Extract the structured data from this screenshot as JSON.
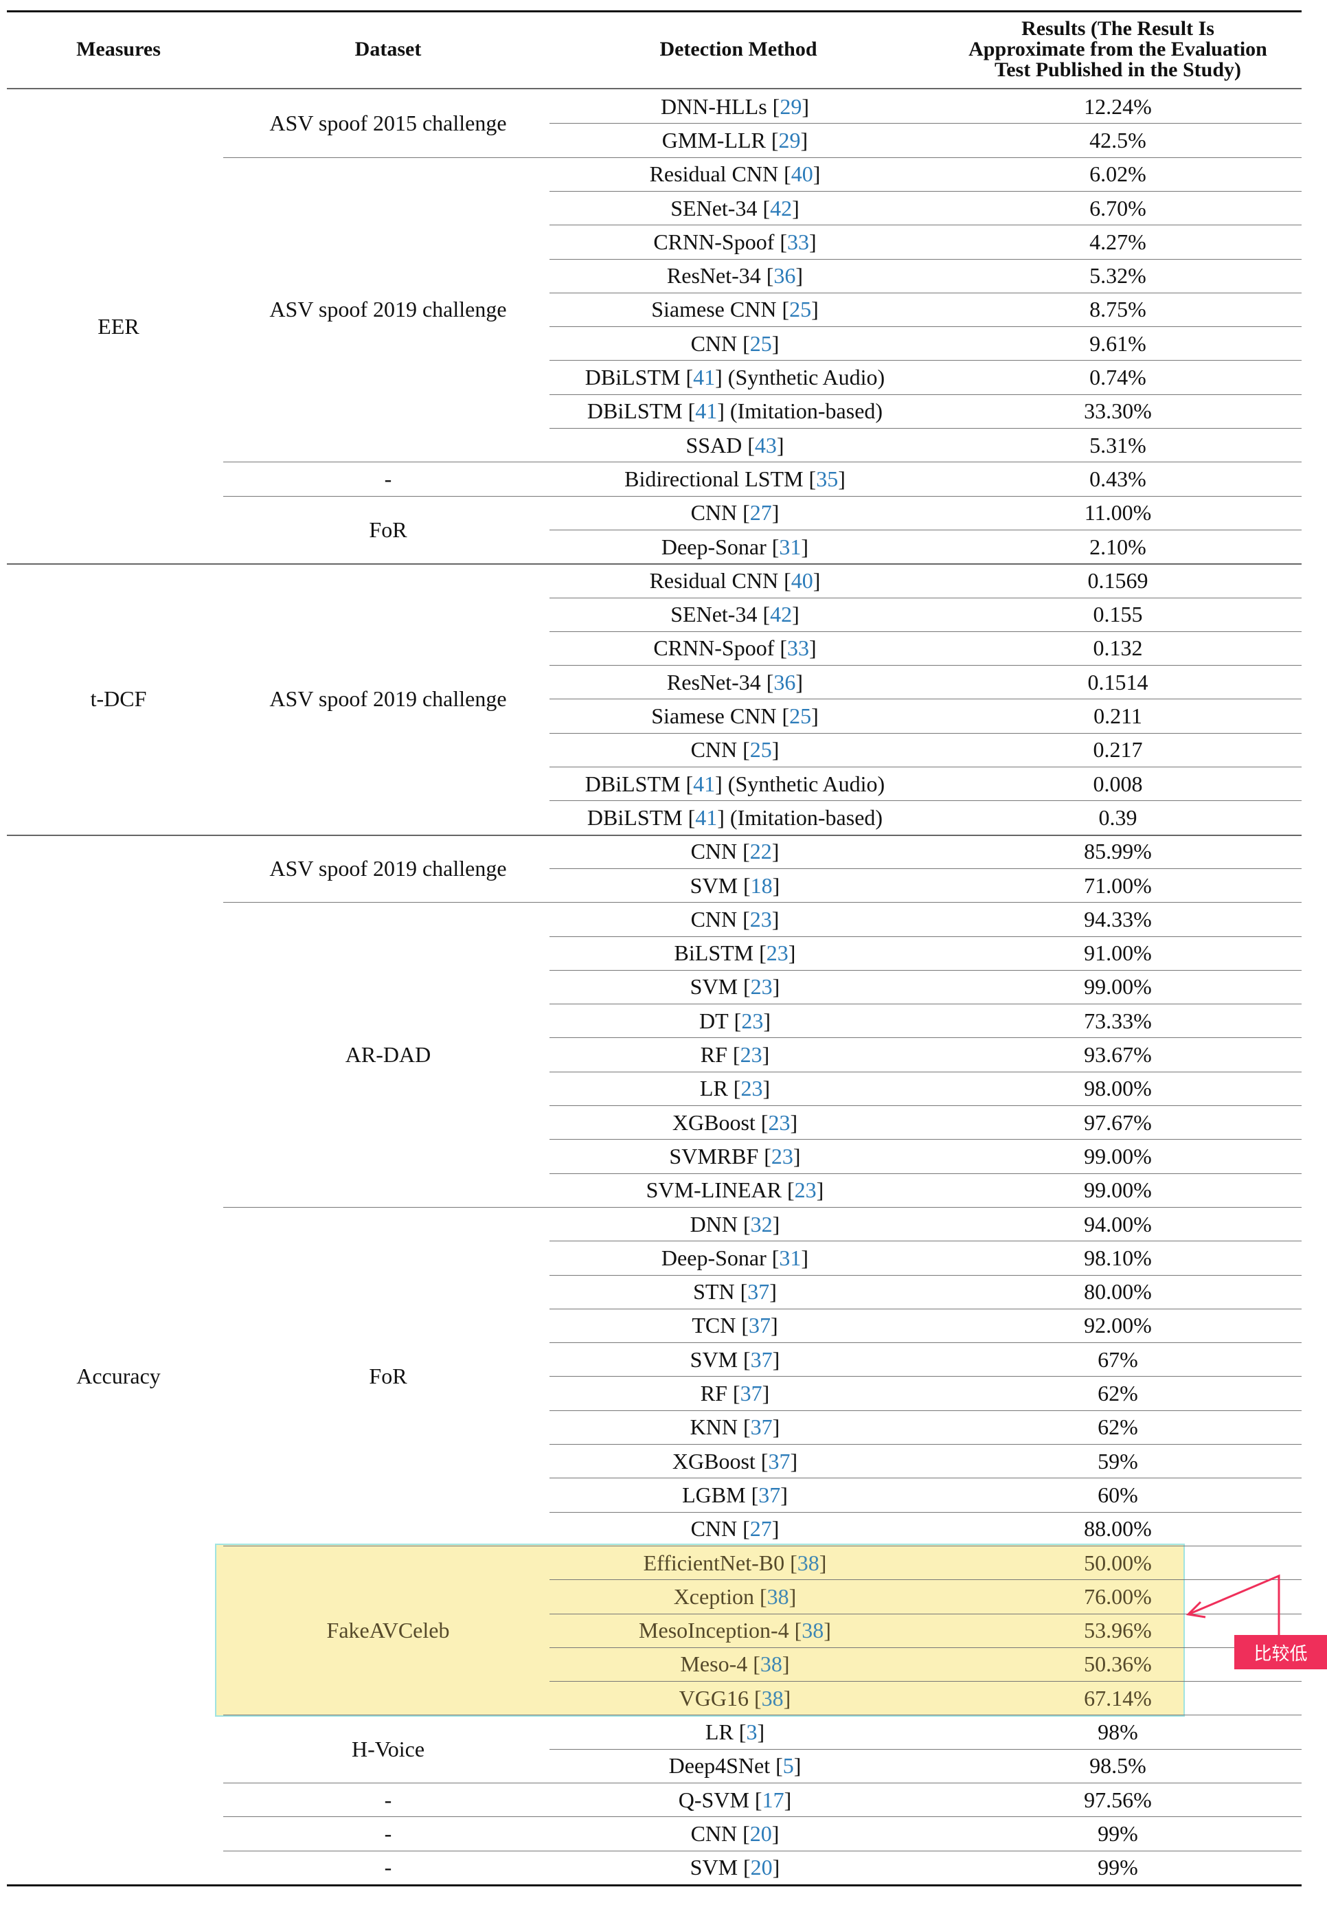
{
  "header": {
    "measures": "Measures",
    "dataset": "Dataset",
    "method": "Detection Method",
    "results": [
      "Results (The Result Is",
      "Approximate from the Evaluation",
      "Test Published in the Study)"
    ]
  },
  "colors": {
    "reference_link": "#2b7bb9",
    "highlight_fill": "#fbf1b8",
    "highlight_border": "#9fe3e1",
    "annotation": "#ef2f5a"
  },
  "measures": [
    {
      "label": "EER",
      "rows": [
        0,
        13
      ]
    },
    {
      "label": "t-DCF",
      "rows": [
        14,
        21
      ]
    },
    {
      "label": "Accuracy",
      "rows": [
        22,
        53
      ]
    }
  ],
  "datasets": [
    {
      "label": "ASV spoof 2015 challenge",
      "rows": [
        0,
        1
      ]
    },
    {
      "label": "ASV spoof 2019 challenge",
      "rows": [
        2,
        10
      ]
    },
    {
      "label": "-",
      "rows": [
        11,
        11
      ]
    },
    {
      "label": "FoR",
      "rows": [
        12,
        13
      ]
    },
    {
      "label": "ASV spoof 2019 challenge",
      "rows": [
        14,
        21
      ]
    },
    {
      "label": "ASV spoof 2019 challenge",
      "rows": [
        22,
        23
      ]
    },
    {
      "label": "AR-DAD",
      "rows": [
        24,
        32
      ]
    },
    {
      "label": "FoR",
      "rows": [
        33,
        42
      ]
    },
    {
      "label": "FakeAVCeleb",
      "rows": [
        43,
        47
      ]
    },
    {
      "label": "H-Voice",
      "rows": [
        48,
        49
      ]
    },
    {
      "label": "-",
      "rows": [
        50,
        50
      ]
    },
    {
      "label": "-",
      "rows": [
        51,
        51
      ]
    },
    {
      "label": "-",
      "rows": [
        52,
        52
      ]
    }
  ],
  "rows": [
    {
      "method": "DNN-HLLs",
      "ref": "29",
      "suffix": "",
      "result": "12.24%"
    },
    {
      "method": "GMM-LLR",
      "ref": "29",
      "suffix": "",
      "result": "42.5%"
    },
    {
      "method": "Residual CNN",
      "ref": "40",
      "suffix": "",
      "result": "6.02%"
    },
    {
      "method": "SENet-34",
      "ref": "42",
      "suffix": "",
      "result": "6.70%"
    },
    {
      "method": "CRNN-Spoof",
      "ref": "33",
      "suffix": "",
      "result": "4.27%"
    },
    {
      "method": "ResNet-34",
      "ref": "36",
      "suffix": "",
      "result": "5.32%"
    },
    {
      "method": "Siamese CNN",
      "ref": "25",
      "suffix": "",
      "result": "8.75%"
    },
    {
      "method": "CNN",
      "ref": "25",
      "suffix": "",
      "result": "9.61%"
    },
    {
      "method": "DBiLSTM",
      "ref": "41",
      "suffix": " (Synthetic Audio)",
      "result": "0.74%"
    },
    {
      "method": "DBiLSTM",
      "ref": "41",
      "suffix": " (Imitation-based)",
      "result": "33.30%"
    },
    {
      "method": "SSAD",
      "ref": "43",
      "suffix": "",
      "result": "5.31%"
    },
    {
      "method": "Bidirectional LSTM",
      "ref": "35",
      "suffix": "",
      "result": "0.43%"
    },
    {
      "method": "CNN",
      "ref": "27",
      "suffix": "",
      "result": "11.00%"
    },
    {
      "method": "Deep-Sonar",
      "ref": "31",
      "suffix": "",
      "result": "2.10%"
    },
    {
      "method": "Residual CNN",
      "ref": "40",
      "suffix": "",
      "result": "0.1569"
    },
    {
      "method": "SENet-34",
      "ref": "42",
      "suffix": "",
      "result": "0.155"
    },
    {
      "method": "CRNN-Spoof",
      "ref": "33",
      "suffix": "",
      "result": "0.132"
    },
    {
      "method": "ResNet-34",
      "ref": "36",
      "suffix": "",
      "result": "0.1514"
    },
    {
      "method": "Siamese CNN",
      "ref": "25",
      "suffix": "",
      "result": "0.211"
    },
    {
      "method": "CNN",
      "ref": "25",
      "suffix": "",
      "result": "0.217"
    },
    {
      "method": "DBiLSTM",
      "ref": "41",
      "suffix": " (Synthetic Audio)",
      "result": "0.008"
    },
    {
      "method": "DBiLSTM",
      "ref": "41",
      "suffix": " (Imitation-based)",
      "result": "0.39"
    },
    {
      "method": "CNN",
      "ref": "22",
      "suffix": "",
      "result": "85.99%"
    },
    {
      "method": "SVM",
      "ref": "18",
      "suffix": "",
      "result": "71.00%"
    },
    {
      "method": "CNN",
      "ref": "23",
      "suffix": "",
      "result": "94.33%"
    },
    {
      "method": "BiLSTM",
      "ref": "23",
      "suffix": "",
      "result": "91.00%"
    },
    {
      "method": "SVM",
      "ref": "23",
      "suffix": "",
      "result": "99.00%"
    },
    {
      "method": "DT",
      "ref": "23",
      "suffix": "",
      "result": "73.33%"
    },
    {
      "method": "RF",
      "ref": "23",
      "suffix": "",
      "result": "93.67%"
    },
    {
      "method": "LR",
      "ref": "23",
      "suffix": "",
      "result": "98.00%"
    },
    {
      "method": "XGBoost",
      "ref": "23",
      "suffix": "",
      "result": "97.67%"
    },
    {
      "method": "SVMRBF",
      "ref": "23",
      "suffix": "",
      "result": "99.00%"
    },
    {
      "method": "SVM-LINEAR",
      "ref": "23",
      "suffix": "",
      "result": "99.00%"
    },
    {
      "method": "DNN",
      "ref": "32",
      "suffix": "",
      "result": "94.00%"
    },
    {
      "method": "Deep-Sonar",
      "ref": "31",
      "suffix": "",
      "result": "98.10%"
    },
    {
      "method": "STN",
      "ref": "37",
      "suffix": "",
      "result": "80.00%"
    },
    {
      "method": "TCN",
      "ref": "37",
      "suffix": "",
      "result": "92.00%"
    },
    {
      "method": "SVM",
      "ref": "37",
      "suffix": "",
      "result": "67%"
    },
    {
      "method": "RF",
      "ref": "37",
      "suffix": "",
      "result": "62%"
    },
    {
      "method": "KNN",
      "ref": "37",
      "suffix": "",
      "result": "62%"
    },
    {
      "method": "XGBoost",
      "ref": "37",
      "suffix": "",
      "result": "59%"
    },
    {
      "method": "LGBM",
      "ref": "37",
      "suffix": "",
      "result": "60%"
    },
    {
      "method": "CNN",
      "ref": "27",
      "suffix": "",
      "result": "88.00%"
    },
    {
      "method": "EfficientNet-B0",
      "ref": "38",
      "suffix": "",
      "result": "50.00%"
    },
    {
      "method": "Xception",
      "ref": "38",
      "suffix": "",
      "result": "76.00%"
    },
    {
      "method": "MesoInception-4",
      "ref": "38",
      "suffix": "",
      "result": "53.96%"
    },
    {
      "method": "Meso-4",
      "ref": "38",
      "suffix": "",
      "result": "50.36%"
    },
    {
      "method": "VGG16",
      "ref": "38",
      "suffix": "",
      "result": "67.14%"
    },
    {
      "method": "LR",
      "ref": "3",
      "suffix": "",
      "result": "98%"
    },
    {
      "method": "Deep4SNet",
      "ref": "5",
      "suffix": "",
      "result": "98.5%"
    },
    {
      "method": "Q-SVM",
      "ref": "17",
      "suffix": "",
      "result": "97.56%"
    },
    {
      "method": "CNN",
      "ref": "20",
      "suffix": "",
      "result": "99%"
    },
    {
      "method": "SVM",
      "ref": "20",
      "suffix": "",
      "result": "99%"
    }
  ],
  "highlight_rows": [
    43,
    47
  ],
  "annotation": {
    "text": "比较低"
  }
}
